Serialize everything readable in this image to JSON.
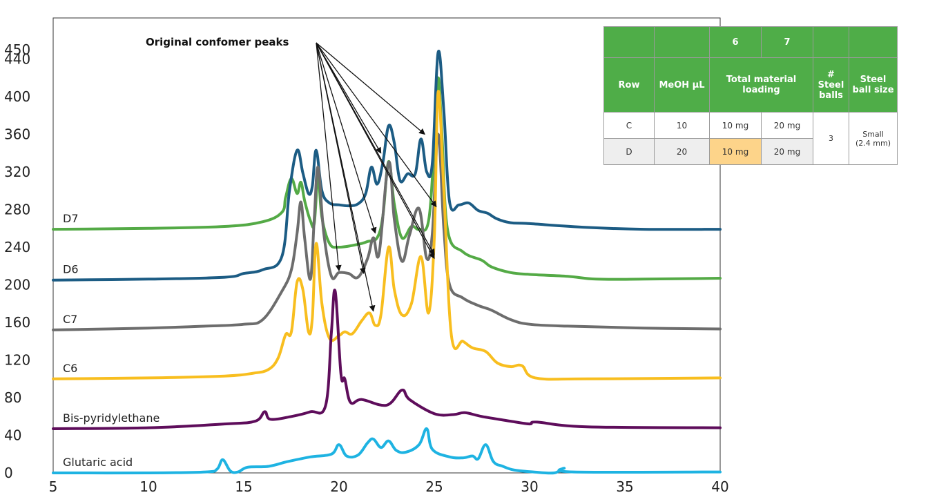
{
  "chart_data": {
    "type": "line",
    "title": "",
    "xlabel": "",
    "ylabel": "",
    "xlim": [
      5,
      40
    ],
    "ylim": [
      0,
      450
    ],
    "x_ticks": [
      "5",
      "10",
      "15",
      "20",
      "25",
      "30",
      "35",
      "40"
    ],
    "y_ticks": [
      "0",
      "40",
      "80",
      "120",
      "160",
      "200",
      "240",
      "280",
      "320",
      "360",
      "400",
      "440",
      "450"
    ],
    "grid": false,
    "series": [
      {
        "name": "D7",
        "color": "#54aa46",
        "points": [
          [
            5,
            259
          ],
          [
            10,
            260
          ],
          [
            14,
            262
          ],
          [
            16,
            267
          ],
          [
            17,
            277
          ],
          [
            17.2,
            293
          ],
          [
            17.5,
            313
          ],
          [
            17.8,
            297
          ],
          [
            18,
            309
          ],
          [
            18.2,
            289
          ],
          [
            18.5,
            268
          ],
          [
            18.7,
            265
          ],
          [
            18.9,
            315
          ],
          [
            19.1,
            272
          ],
          [
            19.5,
            244
          ],
          [
            20,
            240
          ],
          [
            21,
            243
          ],
          [
            21.5,
            246
          ],
          [
            22,
            250
          ],
          [
            22.3,
            273
          ],
          [
            22.6,
            331
          ],
          [
            22.9,
            286
          ],
          [
            23.3,
            250
          ],
          [
            23.8,
            262
          ],
          [
            24.2,
            259
          ],
          [
            24.7,
            268
          ],
          [
            25,
            350
          ],
          [
            25.2,
            420
          ],
          [
            25.4,
            360
          ],
          [
            25.7,
            258
          ],
          [
            26.5,
            235
          ],
          [
            27.5,
            226
          ],
          [
            28,
            219
          ],
          [
            29,
            213
          ],
          [
            30,
            211
          ],
          [
            32,
            209
          ],
          [
            33.5,
            206
          ],
          [
            36,
            206
          ],
          [
            40,
            207
          ]
        ]
      },
      {
        "name": "D6",
        "color": "#1c5c84",
        "points": [
          [
            5,
            205
          ],
          [
            10,
            206
          ],
          [
            14,
            208
          ],
          [
            15,
            212
          ],
          [
            16,
            216
          ],
          [
            17,
            230
          ],
          [
            17.4,
            300
          ],
          [
            17.8,
            343
          ],
          [
            18.1,
            319
          ],
          [
            18.4,
            297
          ],
          [
            18.6,
            305
          ],
          [
            18.8,
            343
          ],
          [
            19.1,
            300
          ],
          [
            19.5,
            287
          ],
          [
            20,
            285
          ],
          [
            20.5,
            284
          ],
          [
            21,
            286
          ],
          [
            21.4,
            297
          ],
          [
            21.7,
            325
          ],
          [
            22,
            307
          ],
          [
            22.3,
            330
          ],
          [
            22.6,
            369
          ],
          [
            22.9,
            351
          ],
          [
            23.2,
            311
          ],
          [
            23.6,
            318
          ],
          [
            24,
            318
          ],
          [
            24.3,
            355
          ],
          [
            24.6,
            320
          ],
          [
            24.9,
            330
          ],
          [
            25.2,
            447
          ],
          [
            25.5,
            385
          ],
          [
            25.8,
            288
          ],
          [
            26.3,
            285
          ],
          [
            26.8,
            287
          ],
          [
            27.3,
            279
          ],
          [
            27.8,
            276
          ],
          [
            28.3,
            270
          ],
          [
            29,
            266
          ],
          [
            30,
            265
          ],
          [
            33,
            261
          ],
          [
            36,
            259
          ],
          [
            40,
            259
          ]
        ]
      },
      {
        "name": "C7",
        "color": "#6d6d6d",
        "points": [
          [
            5,
            152
          ],
          [
            10,
            154
          ],
          [
            13,
            156
          ],
          [
            15,
            158
          ],
          [
            16,
            163
          ],
          [
            17,
            193
          ],
          [
            17.5,
            216
          ],
          [
            17.8,
            255
          ],
          [
            18,
            288
          ],
          [
            18.2,
            249
          ],
          [
            18.5,
            206
          ],
          [
            18.7,
            270
          ],
          [
            18.9,
            325
          ],
          [
            19.2,
            255
          ],
          [
            19.6,
            209
          ],
          [
            20,
            213
          ],
          [
            20.5,
            212
          ],
          [
            21,
            208
          ],
          [
            21.5,
            228
          ],
          [
            21.8,
            250
          ],
          [
            22.1,
            233
          ],
          [
            22.6,
            330
          ],
          [
            22.9,
            270
          ],
          [
            23.3,
            225
          ],
          [
            23.7,
            253
          ],
          [
            24.2,
            281
          ],
          [
            24.6,
            228
          ],
          [
            24.9,
            255
          ],
          [
            25.2,
            360
          ],
          [
            25.5,
            260
          ],
          [
            25.8,
            200
          ],
          [
            26.5,
            186
          ],
          [
            27.3,
            178
          ],
          [
            28,
            173
          ],
          [
            29,
            163
          ],
          [
            30,
            158
          ],
          [
            32,
            156
          ],
          [
            36,
            154
          ],
          [
            40,
            153
          ]
        ]
      },
      {
        "name": "C6",
        "color": "#f8be1f",
        "points": [
          [
            5,
            100
          ],
          [
            10,
            101
          ],
          [
            14,
            103
          ],
          [
            15.5,
            106
          ],
          [
            16.3,
            110
          ],
          [
            16.8,
            122
          ],
          [
            17.2,
            147
          ],
          [
            17.5,
            150
          ],
          [
            17.8,
            203
          ],
          [
            18.1,
            195
          ],
          [
            18.4,
            150
          ],
          [
            18.6,
            165
          ],
          [
            18.8,
            244
          ],
          [
            19.1,
            180
          ],
          [
            19.5,
            143
          ],
          [
            20,
            146
          ],
          [
            20.3,
            150
          ],
          [
            20.7,
            148
          ],
          [
            21.2,
            162
          ],
          [
            21.6,
            170
          ],
          [
            21.9,
            157
          ],
          [
            22.2,
            168
          ],
          [
            22.6,
            240
          ],
          [
            22.9,
            195
          ],
          [
            23.3,
            168
          ],
          [
            23.8,
            180
          ],
          [
            24.3,
            230
          ],
          [
            24.7,
            170
          ],
          [
            25,
            250
          ],
          [
            25.2,
            405
          ],
          [
            25.5,
            300
          ],
          [
            25.9,
            146
          ],
          [
            26.5,
            140
          ],
          [
            27,
            133
          ],
          [
            27.7,
            129
          ],
          [
            28.3,
            117
          ],
          [
            29,
            113
          ],
          [
            29.6,
            114
          ],
          [
            30.3,
            101
          ],
          [
            33,
            100
          ],
          [
            40,
            101
          ]
        ]
      },
      {
        "name": "Bis-pyridylethane",
        "color": "#5e0d5b",
        "points": [
          [
            5,
            47
          ],
          [
            10,
            48
          ],
          [
            14,
            52
          ],
          [
            15.6,
            55
          ],
          [
            16.1,
            65
          ],
          [
            16.4,
            57
          ],
          [
            17.5,
            60
          ],
          [
            18.5,
            65
          ],
          [
            19.3,
            72
          ],
          [
            19.6,
            150
          ],
          [
            19.8,
            193
          ],
          [
            20.1,
            105
          ],
          [
            20.3,
            100
          ],
          [
            20.6,
            75
          ],
          [
            21.2,
            78
          ],
          [
            22.5,
            72
          ],
          [
            23.3,
            88
          ],
          [
            23.7,
            78
          ],
          [
            25,
            63
          ],
          [
            26,
            62
          ],
          [
            26.6,
            64
          ],
          [
            27.5,
            60
          ],
          [
            29,
            55
          ],
          [
            30,
            52
          ],
          [
            30.4,
            54
          ],
          [
            33,
            49
          ],
          [
            40,
            48
          ]
        ]
      },
      {
        "name": "Glutaric acid",
        "color": "#1eb3e2",
        "points": [
          [
            5,
            0
          ],
          [
            10,
            0
          ],
          [
            13,
            1
          ],
          [
            13.6,
            4
          ],
          [
            13.9,
            14
          ],
          [
            14.3,
            2
          ],
          [
            14.7,
            1
          ],
          [
            15.2,
            6
          ],
          [
            16.3,
            7
          ],
          [
            17.3,
            12
          ],
          [
            18.5,
            17
          ],
          [
            19.6,
            20
          ],
          [
            20,
            30
          ],
          [
            20.4,
            18
          ],
          [
            21,
            19
          ],
          [
            21.5,
            32
          ],
          [
            21.8,
            36
          ],
          [
            22.2,
            27
          ],
          [
            22.6,
            34
          ],
          [
            23,
            24
          ],
          [
            23.5,
            22
          ],
          [
            24.2,
            30
          ],
          [
            24.6,
            47
          ],
          [
            24.9,
            25
          ],
          [
            25.8,
            17
          ],
          [
            26.5,
            16
          ],
          [
            27,
            18
          ],
          [
            27.3,
            15
          ],
          [
            27.7,
            30
          ],
          [
            28.1,
            12
          ],
          [
            28.6,
            7
          ],
          [
            29.2,
            3
          ],
          [
            30.2,
            1
          ],
          [
            31.3,
            0
          ],
          [
            31.8,
            5
          ],
          [
            32.3,
            1
          ],
          [
            40,
            1
          ]
        ]
      }
    ],
    "annotation": {
      "text": "Original confomer peaks",
      "targets": [
        [
          20,
          215
        ],
        [
          21.3,
          212
        ],
        [
          21.8,
          172
        ],
        [
          21.9,
          255
        ],
        [
          22.2,
          340
        ],
        [
          24.5,
          360
        ],
        [
          25,
          228
        ],
        [
          25.1,
          283
        ],
        [
          25,
          232
        ]
      ]
    }
  },
  "table": {
    "header_top": [
      "",
      "",
      "6",
      "7",
      "",
      ""
    ],
    "header": [
      "Row",
      "MeOH µL",
      "Total material loading",
      "# Steel balls",
      "Steel ball size"
    ],
    "rows": [
      {
        "row": "C",
        "meoh": "10",
        "load6": "10 mg",
        "load7": "20 mg"
      },
      {
        "row": "D",
        "meoh": "20",
        "load6": "10 mg",
        "load7": "20 mg"
      }
    ],
    "steel_balls": "3",
    "ball_size_line1": "Small",
    "ball_size_line2": "(2.4 mm)",
    "highlight_color": "#fdd48a",
    "header_color": "#4fad48"
  }
}
